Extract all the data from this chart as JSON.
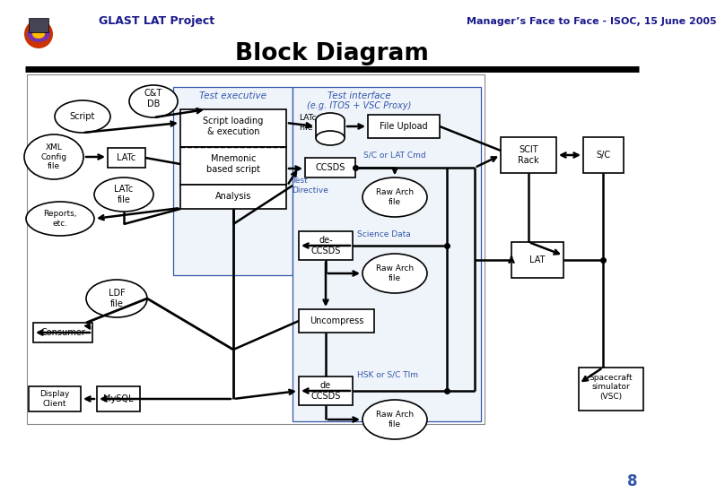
{
  "title": "Block Diagram",
  "header_left": "GLAST LAT Project",
  "header_right": "Manager’s Face to Face - ISOC, 15 June 2005",
  "header_color": "#1a1a8c",
  "title_color": "#000000",
  "bg_color": "#ffffff",
  "page_number": "8",
  "test_exec_label": "Test executive",
  "test_iface_label1": "Test interface",
  "test_iface_label2": "(e.g. ITOS + VSC Proxy)",
  "label_color": "#3355aa",
  "box_outline": "#888888",
  "region_fill": "#f5f5f5",
  "inner_fill": "#eef4fa"
}
